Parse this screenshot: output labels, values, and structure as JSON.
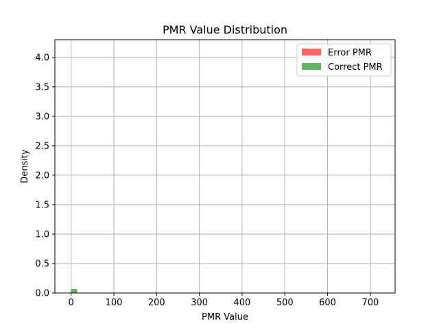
{
  "chart_data": {
    "type": "bar",
    "title": "PMR Value Distribution",
    "xlabel": "PMR Value",
    "ylabel": "Density",
    "xlim": [
      -38,
      758
    ],
    "ylim": [
      0,
      4.3
    ],
    "xticks": [
      0,
      100,
      200,
      300,
      400,
      500,
      600,
      700
    ],
    "yticks": [
      0.0,
      0.5,
      1.0,
      1.5,
      2.0,
      2.5,
      3.0,
      3.5,
      4.0
    ],
    "xtick_labels": [
      "0",
      "100",
      "200",
      "300",
      "400",
      "500",
      "600",
      "700"
    ],
    "ytick_labels": [
      "0.0",
      "0.5",
      "1.0",
      "1.5",
      "2.0",
      "2.5",
      "3.0",
      "3.5",
      "4.0"
    ],
    "grid": true,
    "legend_position": "top-right",
    "series": [
      {
        "name": "Error PMR",
        "color": "#ff0000",
        "alpha": 0.6,
        "bins": []
      },
      {
        "name": "Correct PMR",
        "color": "#008000",
        "alpha": 0.6,
        "bins": [
          {
            "x0": 0,
            "x1": 14,
            "density": 0.07
          }
        ]
      }
    ]
  }
}
